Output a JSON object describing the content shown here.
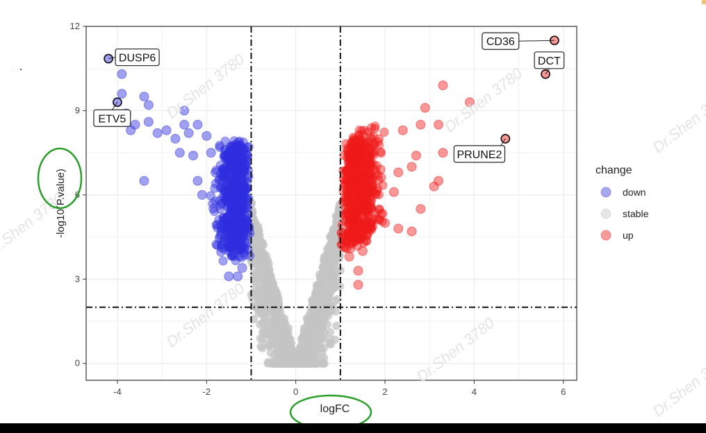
{
  "chart_data": {
    "type": "scatter",
    "xlabel": "logFC",
    "ylabel": "-log10(P.value)",
    "xlim": [
      -4.7,
      6.3
    ],
    "ylim": [
      -0.6,
      12.0
    ],
    "xticks": [
      -4,
      -2,
      0,
      2,
      4,
      6
    ],
    "yticks": [
      0,
      3,
      6,
      9,
      12
    ],
    "grid": true,
    "thresholds": {
      "logFC": [
        -1,
        1
      ],
      "neglog10p": 2
    },
    "legend": {
      "title": "change",
      "position": "right",
      "entries": [
        {
          "label": "down",
          "color": "#3b3bd6"
        },
        {
          "label": "stable",
          "color": "#c8c8c8"
        },
        {
          "label": "up",
          "color": "#ee2020"
        }
      ]
    },
    "series": [
      {
        "name": "down",
        "color": "#2f2fe0",
        "points": [
          [
            -4.2,
            10.85
          ],
          [
            -4.0,
            9.3
          ],
          [
            -3.9,
            10.3
          ],
          [
            -3.9,
            9.6
          ],
          [
            -3.8,
            8.9
          ],
          [
            -3.7,
            8.3
          ],
          [
            -3.6,
            8.5
          ],
          [
            -3.4,
            9.5
          ],
          [
            -3.3,
            9.2
          ],
          [
            -3.3,
            8.6
          ],
          [
            -3.1,
            8.2
          ],
          [
            -2.9,
            8.3
          ],
          [
            -2.7,
            8.0
          ],
          [
            -2.6,
            7.5
          ],
          [
            -2.5,
            8.5
          ],
          [
            -2.4,
            8.2
          ],
          [
            -2.3,
            7.4
          ],
          [
            -2.2,
            6.5
          ],
          [
            -2.1,
            6.0
          ],
          [
            -3.4,
            6.5
          ],
          [
            -2.5,
            9.0
          ],
          [
            -2.2,
            8.5
          ],
          [
            -2.0,
            8.1
          ],
          [
            -1.9,
            7.5
          ],
          [
            -1.8,
            6.8
          ],
          [
            -1.7,
            5.8
          ],
          [
            -1.6,
            4.4
          ],
          [
            -1.4,
            3.9
          ],
          [
            -1.3,
            3.1
          ],
          [
            -1.5,
            3.1
          ],
          [
            -1.2,
            3.4
          ],
          [
            -1.1,
            5.0
          ],
          [
            -1.2,
            7.5
          ]
        ]
      },
      {
        "name": "up",
        "color": "#ef1a1a",
        "points": [
          [
            5.8,
            11.5
          ],
          [
            5.6,
            10.3
          ],
          [
            4.7,
            8.0
          ],
          [
            3.9,
            9.3
          ],
          [
            3.3,
            9.9
          ],
          [
            3.2,
            8.5
          ],
          [
            3.3,
            7.5
          ],
          [
            3.2,
            6.5
          ],
          [
            3.1,
            6.3
          ],
          [
            2.9,
            9.1
          ],
          [
            2.8,
            8.5
          ],
          [
            2.7,
            7.4
          ],
          [
            2.6,
            7.0
          ],
          [
            2.4,
            8.3
          ],
          [
            2.3,
            6.8
          ],
          [
            2.2,
            6.1
          ],
          [
            2.0,
            5.0
          ],
          [
            1.9,
            6.9
          ],
          [
            1.7,
            5.5
          ],
          [
            1.5,
            4.0
          ],
          [
            1.4,
            3.3
          ],
          [
            1.4,
            2.8
          ],
          [
            1.3,
            4.5
          ],
          [
            1.2,
            3.8
          ],
          [
            2.3,
            4.8
          ],
          [
            2.8,
            5.5
          ],
          [
            2.6,
            4.7
          ]
        ]
      },
      {
        "name": "stable",
        "color": "#c4c4c4"
      }
    ],
    "labels": [
      {
        "gene": "DUSP6",
        "x": -4.2,
        "y": 10.85
      },
      {
        "gene": "ETV5",
        "x": -4.0,
        "y": 9.3
      },
      {
        "gene": "CD36",
        "x": 5.8,
        "y": 11.5
      },
      {
        "gene": "DCT",
        "x": 5.6,
        "y": 10.3
      },
      {
        "gene": "PRUNE2",
        "x": 4.7,
        "y": 8.0
      }
    ]
  },
  "watermark": "Dr.Shen 3780"
}
